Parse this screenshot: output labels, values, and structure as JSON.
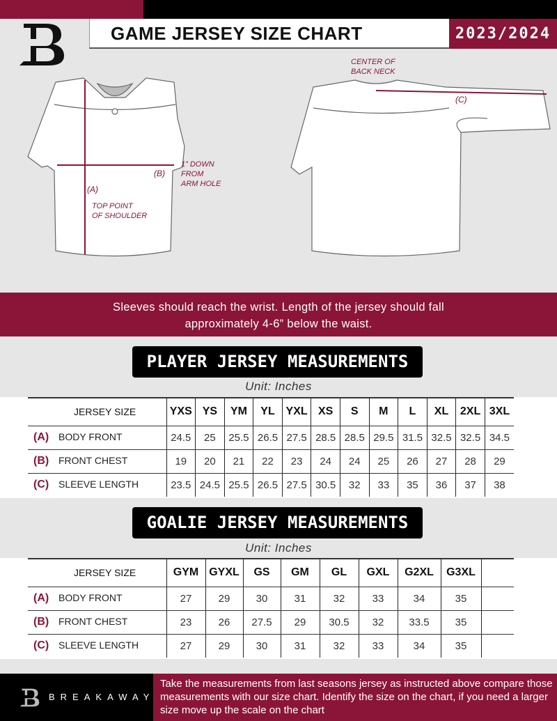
{
  "header": {
    "title": "GAME JERSEY SIZE CHART",
    "season": "2023/2024",
    "logo": "B"
  },
  "colors": {
    "brand": "#8a1538",
    "black": "#000000",
    "background": "#e6e6e7"
  },
  "diagram": {
    "center_back_neck": [
      "CENTER OF",
      "BACK NECK"
    ],
    "label_a": "(A)",
    "label_b": "(B)",
    "label_c": "(C)",
    "arm_hole": [
      "1” DOWN",
      "FROM",
      "ARM HOLE"
    ],
    "top_shoulder": [
      "TOP POINT",
      "OF SHOULDER"
    ]
  },
  "instruction": [
    "Sleeves should reach the wrist. Length of the jersey should fall",
    "approximately 4-6” below the waist."
  ],
  "player": {
    "title": "PLAYER JERSEY MEASUREMENTS",
    "unit": "Unit: Inches",
    "size_label": "JERSEY SIZE",
    "sizes": [
      "YXS",
      "YS",
      "YM",
      "YL",
      "YXL",
      "XS",
      "S",
      "M",
      "L",
      "XL",
      "2XL",
      "3XL"
    ],
    "rows": [
      {
        "key": "(A)",
        "label": "BODY FRONT",
        "values": [
          "24.5",
          "25",
          "25.5",
          "26.5",
          "27.5",
          "28.5",
          "28.5",
          "29.5",
          "31.5",
          "32.5",
          "32.5",
          "34.5"
        ]
      },
      {
        "key": "(B)",
        "label": "FRONT CHEST",
        "values": [
          "19",
          "20",
          "21",
          "22",
          "23",
          "24",
          "24",
          "25",
          "26",
          "27",
          "28",
          "29"
        ]
      },
      {
        "key": "(C)",
        "label": "SLEEVE LENGTH",
        "values": [
          "23.5",
          "24.5",
          "25.5",
          "26.5",
          "27.5",
          "30.5",
          "32",
          "33",
          "35",
          "36",
          "37",
          "38"
        ]
      }
    ]
  },
  "goalie": {
    "title": "GOALIE JERSEY MEASUREMENTS",
    "unit": "Unit: Inches",
    "size_label": "JERSEY SIZE",
    "sizes": [
      "GYM",
      "GYXL",
      "GS",
      "GM",
      "GL",
      "GXL",
      "G2XL",
      "G3XL",
      ""
    ],
    "rows": [
      {
        "key": "(A)",
        "label": "BODY FRONT",
        "values": [
          "27",
          "29",
          "30",
          "31",
          "32",
          "33",
          "34",
          "35",
          ""
        ]
      },
      {
        "key": "(B)",
        "label": "FRONT CHEST",
        "values": [
          "23",
          "26",
          "27.5",
          "29",
          "30.5",
          "32",
          "33.5",
          "35",
          ""
        ]
      },
      {
        "key": "(C)",
        "label": "SLEEVE LENGTH",
        "values": [
          "27",
          "29",
          "30",
          "31",
          "32",
          "33",
          "34",
          "35",
          ""
        ]
      }
    ]
  },
  "footer": {
    "brand": "BREAKAWAY",
    "note": "Take the measurements from last seasons jersey as instructed above compare those measurements  with our size chart. Identify the size on the chart, if you need a larger size move up the scale on the chart"
  }
}
